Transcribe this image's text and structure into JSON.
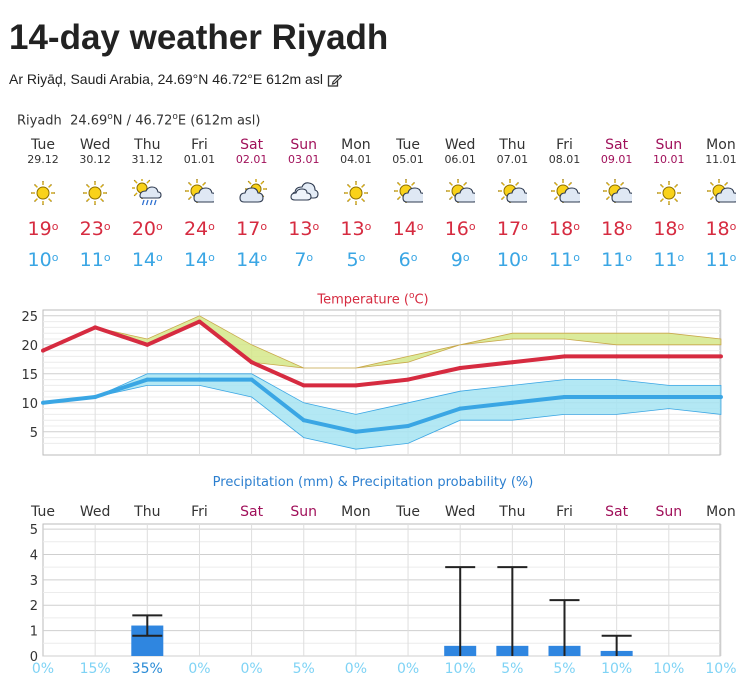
{
  "header": {
    "title": "14-day weather Riyadh",
    "subtitle": "Ar Riyāḑ, Saudi Arabia, 24.69°N 46.72°E 612m asl"
  },
  "location": {
    "name": "Riyadh",
    "lat": "24.69",
    "lat_dir": "N",
    "sep": " / ",
    "lon": "46.72",
    "lon_dir": "E",
    "asl": "(612m asl)",
    "degree": "o"
  },
  "colors": {
    "tmax": "#d62b40",
    "tmin": "#3aa6e4",
    "weekend": "#a0105a",
    "precip_bar": "#2f86e0",
    "prob": "#7fd3f5",
    "band_max": "#d5e88a",
    "band_min": "#a6e4f2"
  },
  "days": [
    {
      "name": "Tue",
      "date": "29.12",
      "icon": "sun-icon",
      "tmax": "19",
      "tmin": "10",
      "weekend": false
    },
    {
      "name": "Wed",
      "date": "30.12",
      "icon": "sun-icon",
      "tmax": "23",
      "tmin": "11",
      "weekend": false
    },
    {
      "name": "Thu",
      "date": "31.12",
      "icon": "rain-cloud-sun-icon",
      "tmax": "20",
      "tmin": "14",
      "weekend": false
    },
    {
      "name": "Fri",
      "date": "01.01",
      "icon": "sun-cloud-icon",
      "tmax": "24",
      "tmin": "14",
      "weekend": false
    },
    {
      "name": "Sat",
      "date": "02.01",
      "icon": "cloud-sun-icon",
      "tmax": "17",
      "tmin": "14",
      "weekend": true
    },
    {
      "name": "Sun",
      "date": "03.01",
      "icon": "cloud-icon",
      "tmax": "13",
      "tmin": "7",
      "weekend": true
    },
    {
      "name": "Mon",
      "date": "04.01",
      "icon": "sun-icon",
      "tmax": "13",
      "tmin": "5",
      "weekend": false
    },
    {
      "name": "Tue",
      "date": "05.01",
      "icon": "sun-cloud-icon",
      "tmax": "14",
      "tmin": "6",
      "weekend": false
    },
    {
      "name": "Wed",
      "date": "06.01",
      "icon": "sun-cloud-icon",
      "tmax": "16",
      "tmin": "9",
      "weekend": false
    },
    {
      "name": "Thu",
      "date": "07.01",
      "icon": "sun-cloud-icon",
      "tmax": "17",
      "tmin": "10",
      "weekend": false
    },
    {
      "name": "Fri",
      "date": "08.01",
      "icon": "sun-cloud-icon",
      "tmax": "18",
      "tmin": "11",
      "weekend": false
    },
    {
      "name": "Sat",
      "date": "09.01",
      "icon": "sun-cloud-icon",
      "tmax": "18",
      "tmin": "11",
      "weekend": true
    },
    {
      "name": "Sun",
      "date": "10.01",
      "icon": "sun-icon",
      "tmax": "18",
      "tmin": "11",
      "weekend": true
    },
    {
      "name": "Mon",
      "date": "11.01",
      "icon": "sun-cloud-icon",
      "tmax": "18",
      "tmin": "11",
      "weekend": false
    }
  ],
  "chart_data": [
    {
      "type": "line",
      "title": "Temperature (°C)",
      "ylim": [
        1,
        26
      ],
      "yticks": [
        5,
        10,
        15,
        20,
        25
      ],
      "grid": true,
      "categories": [
        "Tue",
        "Wed",
        "Thu",
        "Fri",
        "Sat",
        "Sun",
        "Mon",
        "Tue",
        "Wed",
        "Thu",
        "Fri",
        "Sat",
        "Sun",
        "Mon"
      ],
      "series": [
        {
          "key": "max",
          "values": [
            19,
            23,
            20,
            24,
            17,
            13,
            13,
            14,
            16,
            17,
            18,
            18,
            18,
            18
          ],
          "band_low": [
            19,
            23,
            20,
            24,
            17,
            16,
            16,
            17,
            20,
            21,
            21,
            20,
            20,
            20
          ],
          "band_high": [
            19,
            23,
            21,
            25,
            20,
            16,
            16,
            18,
            20,
            22,
            22,
            22,
            22,
            21
          ]
        },
        {
          "key": "min",
          "values": [
            10,
            11,
            14,
            14,
            14,
            7,
            5,
            6,
            9,
            10,
            11,
            11,
            11,
            11
          ],
          "band_low": [
            10,
            11,
            13,
            13,
            11,
            4,
            2,
            3,
            7,
            7,
            8,
            8,
            9,
            8
          ],
          "band_high": [
            10,
            11,
            15,
            15,
            15,
            10,
            8,
            10,
            12,
            13,
            14,
            14,
            13,
            13
          ]
        }
      ]
    },
    {
      "type": "bar",
      "title": "Precipitation (mm) & Precipitation probability (%)",
      "ylim": [
        0,
        5.2
      ],
      "yticks": [
        0,
        1,
        2,
        3,
        4,
        5
      ],
      "grid": true,
      "categories": [
        "Tue",
        "Wed",
        "Thu",
        "Fri",
        "Sat",
        "Sun",
        "Mon",
        "Tue",
        "Wed",
        "Thu",
        "Fri",
        "Sat",
        "Sun",
        "Mon"
      ],
      "precip_mm": [
        0,
        0,
        1.2,
        0,
        0,
        0,
        0,
        0,
        0.4,
        0.4,
        0.4,
        0.2,
        0,
        0
      ],
      "range_low": [
        0,
        0,
        0.8,
        0,
        0,
        0,
        0,
        0,
        0,
        0,
        0,
        0,
        0,
        0
      ],
      "range_high": [
        0,
        0,
        1.6,
        0,
        0,
        0,
        0,
        0,
        3.5,
        3.5,
        2.2,
        0.8,
        0,
        0
      ],
      "probability": [
        "0%",
        "15%",
        "35%",
        "0%",
        "0%",
        "5%",
        "0%",
        "0%",
        "10%",
        "5%",
        "5%",
        "10%",
        "10%",
        "10%"
      ]
    }
  ]
}
